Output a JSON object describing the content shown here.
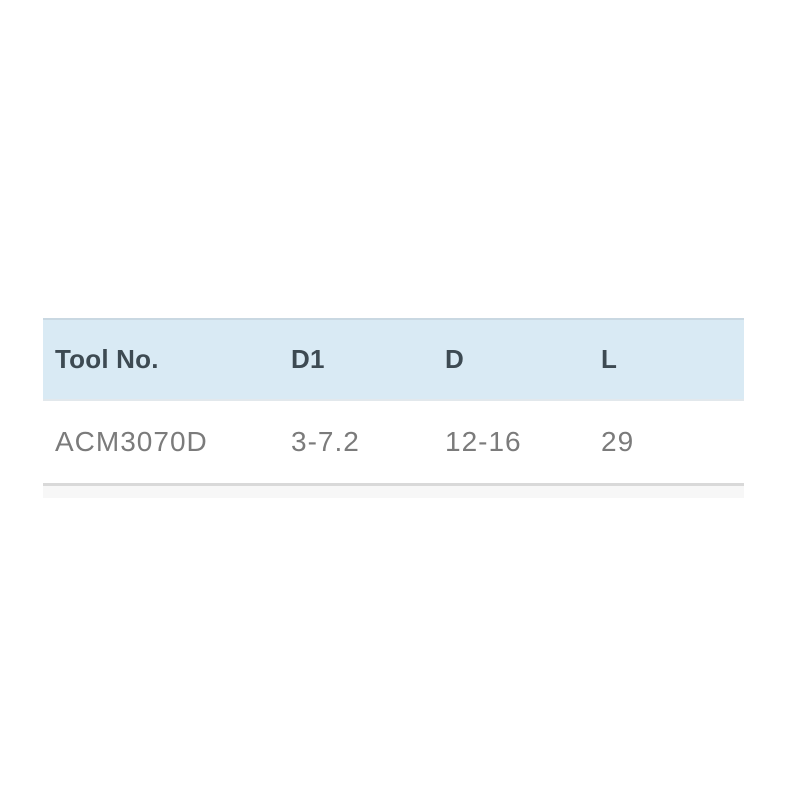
{
  "page": {
    "background_color": "#ffffff"
  },
  "table": {
    "header": {
      "background_color": "#d9eaf4",
      "text_color": "#3d4a52",
      "columns": [
        {
          "label": "Tool No."
        },
        {
          "label": "D1"
        },
        {
          "label": "D"
        },
        {
          "label": "L"
        }
      ]
    },
    "rows": [
      {
        "tool_no": "ACM3070D",
        "d1": "3-7.2",
        "d": "12-16",
        "l": "29"
      }
    ],
    "row_text_color": "#7b7b7b",
    "borders": {
      "header_top": "#c9d8e2",
      "header_bottom": "#e2e8ec",
      "table_bottom_rule": "#d9d9d9",
      "footer_band": "#f7f7f7"
    }
  }
}
